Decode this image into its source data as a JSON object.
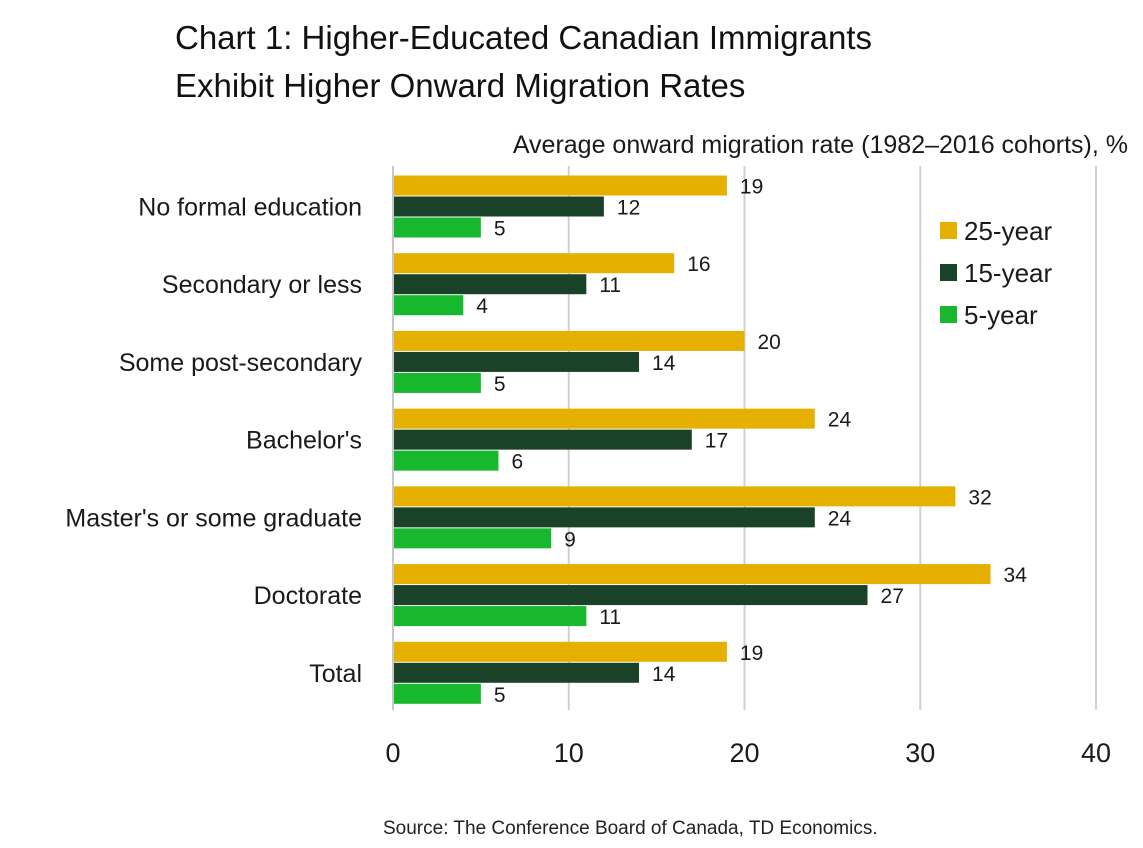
{
  "title_lines": [
    "Chart 1: Higher-Educated Canadian Immigrants",
    "Exhibit Higher Onward Migration Rates"
  ],
  "source": "Source: The Conference Board of Canada, TD Economics.",
  "colors": {
    "25-year": "#e5b000",
    "15-year": "#1a4228",
    "5-year": "#17b72e",
    "grid": "#d0d0d0"
  },
  "chart_data": {
    "type": "bar",
    "orientation": "horizontal",
    "title": "Chart 1: Higher-Educated Canadian Immigrants Exhibit Higher Onward Migration Rates",
    "subtitle": "Average onward migration rate (1982–2016 cohorts), %",
    "xlabel": "",
    "ylabel": "",
    "categories": [
      "No formal education",
      "Secondary or less",
      "Some post-secondary",
      "Bachelor's",
      "Master's or some graduate ",
      "Doctorate",
      "Total"
    ],
    "series": [
      {
        "name": "25-year",
        "values": [
          19,
          16,
          20,
          24,
          32,
          34,
          19
        ]
      },
      {
        "name": "15-year",
        "values": [
          12,
          11,
          14,
          17,
          24,
          27,
          14
        ]
      },
      {
        "name": "5-year",
        "values": [
          5,
          4,
          5,
          6,
          9,
          11,
          5
        ]
      }
    ],
    "xlim": [
      0,
      40
    ],
    "xticks": [
      0,
      10,
      20,
      30,
      40
    ],
    "grid": true,
    "legend_position": "top-right"
  }
}
